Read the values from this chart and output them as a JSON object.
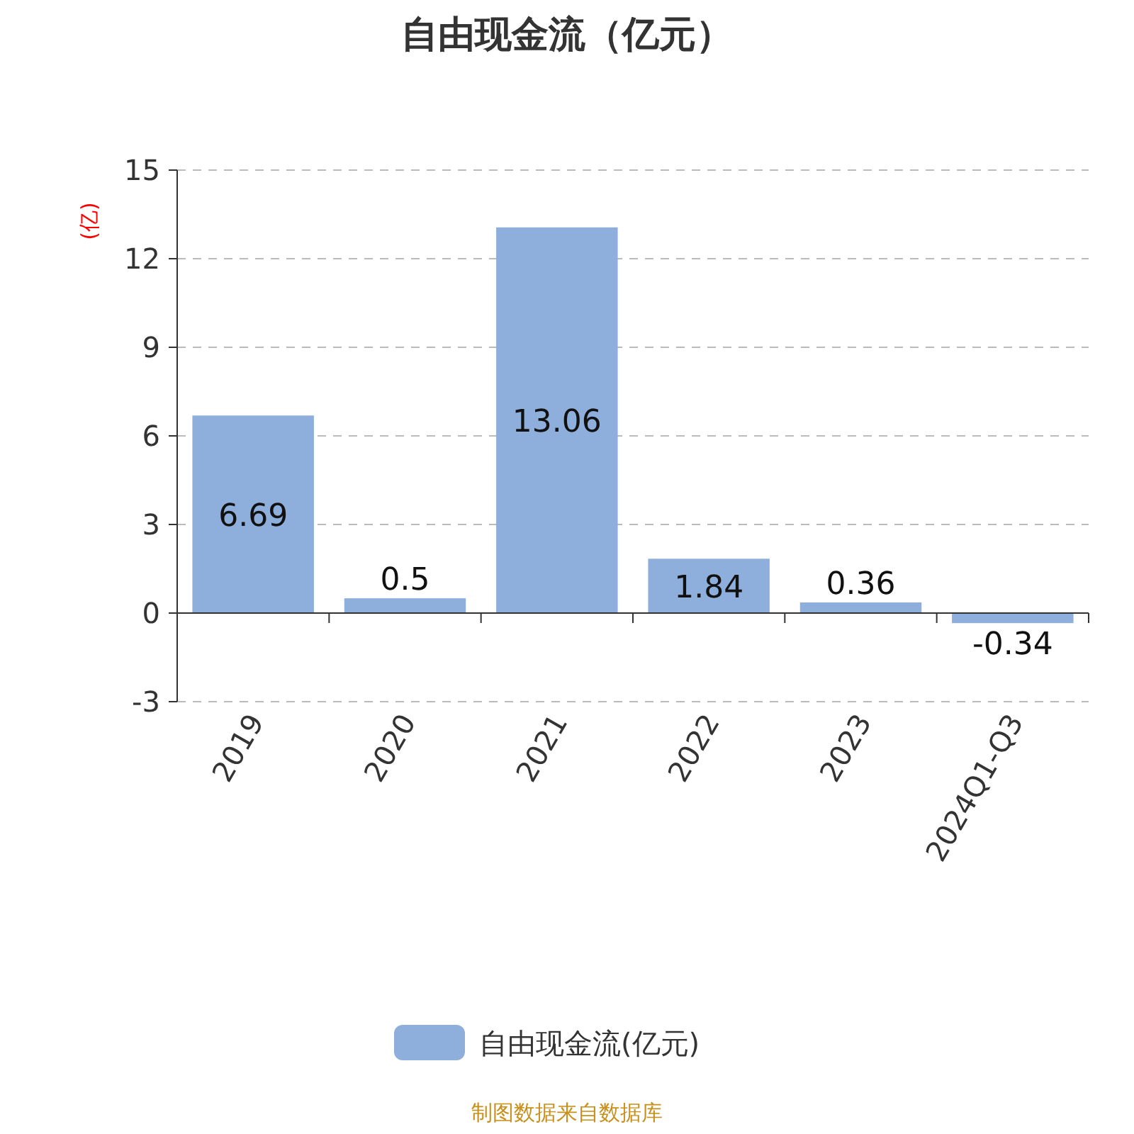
{
  "chart_data": {
    "type": "bar",
    "title": "自由现金流（亿元）",
    "ylabel": "(亿)",
    "categories": [
      "2019",
      "2020",
      "2021",
      "2022",
      "2023",
      "2024Q1-Q3"
    ],
    "series": [
      {
        "name": "自由现金流(亿元)",
        "color": "#8eaedb",
        "values": [
          6.69,
          0.5,
          13.06,
          1.84,
          0.36,
          -0.34
        ]
      }
    ],
    "ylim": [
      -3,
      15
    ],
    "yticks": [
      -3,
      0,
      3,
      6,
      9,
      12,
      15
    ],
    "grid": "y",
    "legend": "bottom",
    "data_labels": true,
    "annotations": [
      "制图数据来自数据库"
    ]
  }
}
